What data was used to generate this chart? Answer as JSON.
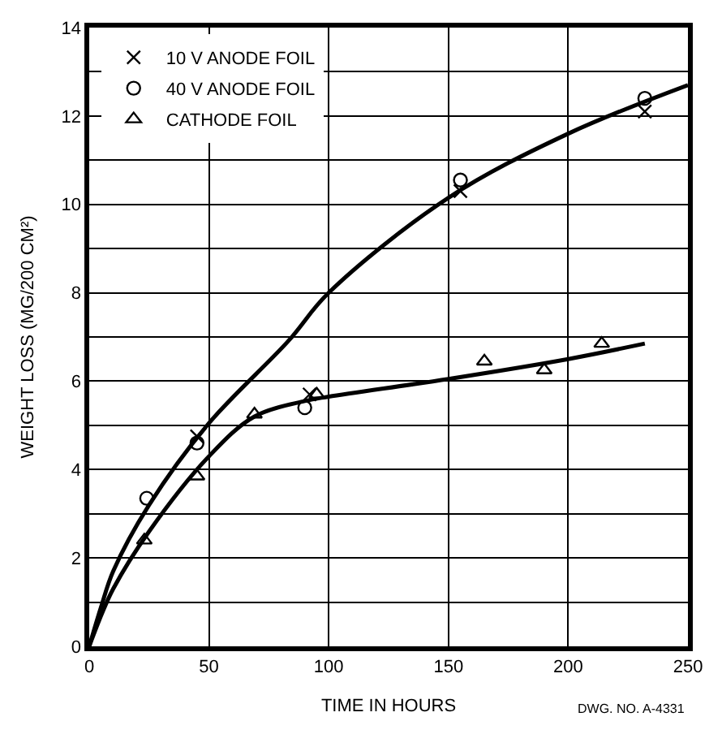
{
  "chart_data": {
    "type": "scatter",
    "xlabel": "TIME IN HOURS",
    "ylabel": "WEIGHT LOSS (MG/200 CM²)",
    "xlim": [
      0,
      250
    ],
    "ylim": [
      0,
      14
    ],
    "xticks": [
      0,
      50,
      100,
      150,
      200,
      250
    ],
    "yticks": [
      0,
      {
        "value": 1,
        "label": null
      },
      2,
      {
        "value": 3,
        "label": null
      },
      4,
      {
        "value": 5,
        "label": null
      },
      6,
      {
        "value": 7,
        "label": null
      },
      8,
      {
        "value": 9,
        "label": null
      },
      10,
      {
        "value": 11,
        "label": null
      },
      12,
      {
        "value": 13,
        "label": null
      },
      14
    ],
    "grid": true,
    "legend": "top left",
    "series": [
      {
        "name": "10 V ANODE FOIL",
        "color": "#000000",
        "marker": "cross",
        "x": [
          45,
          92,
          155,
          232
        ],
        "values": [
          4.75,
          5.7,
          10.3,
          12.1
        ]
      },
      {
        "name": "40 V ANODE FOIL",
        "color": "#000000",
        "marker": "circle",
        "x": [
          24,
          45,
          90,
          155,
          232
        ],
        "values": [
          3.35,
          4.6,
          5.4,
          10.55,
          12.4
        ]
      },
      {
        "name": "CATHODE FOIL",
        "color": "#000000",
        "marker": "triangle",
        "x": [
          23,
          45,
          69,
          95,
          165,
          190,
          214
        ],
        "values": [
          2.4,
          3.85,
          5.25,
          5.7,
          6.45,
          6.25,
          6.85
        ]
      },
      {
        "type": "line",
        "color": "#000000",
        "marker": "none",
        "x": [
          0,
          5,
          10,
          25,
          50,
          83,
          100,
          150,
          200,
          250
        ],
        "values": [
          0,
          0.9,
          1.7,
          3.2,
          5.05,
          6.9,
          8.0,
          10.15,
          11.6,
          12.7
        ]
      },
      {
        "type": "line",
        "color": "#000000",
        "marker": "none",
        "x": [
          0,
          5,
          10,
          25,
          50,
          69,
          90,
          100,
          150,
          200,
          232
        ],
        "values": [
          0,
          0.7,
          1.3,
          2.6,
          4.3,
          5.2,
          5.55,
          5.65,
          6.05,
          6.5,
          6.85
        ]
      }
    ],
    "annotations": [
      "DWG. NO. A-4331"
    ]
  }
}
